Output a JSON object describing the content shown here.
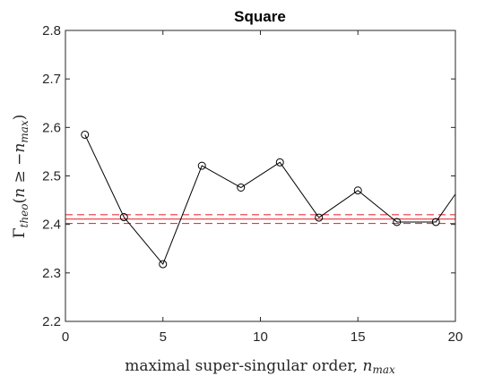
{
  "chart_data": {
    "type": "line",
    "title": "Square",
    "xlabel": "maximal super-singular order, n_max",
    "ylabel": "Γ_theo(n ≥ −n_max)",
    "xlim": [
      0,
      20
    ],
    "ylim": [
      2.2,
      2.8
    ],
    "xticks": [
      0,
      5,
      10,
      15,
      20
    ],
    "yticks": [
      2.2,
      2.3,
      2.4,
      2.5,
      2.6,
      2.7,
      2.8
    ],
    "xtick_labels": [
      "0",
      "5",
      "10",
      "15",
      "20"
    ],
    "ytick_labels": [
      "2.2",
      "2.3",
      "2.4",
      "2.5",
      "2.6",
      "2.7",
      "2.8"
    ],
    "series": [
      {
        "color": "#000000",
        "marker": "circle",
        "x": [
          1,
          3,
          5,
          7,
          9,
          11,
          13,
          15,
          17,
          19,
          21
        ],
        "y": [
          2.585,
          2.415,
          2.318,
          2.521,
          2.476,
          2.528,
          2.414,
          2.47,
          2.405,
          2.405,
          2.52
        ]
      }
    ],
    "reference_lines": [
      {
        "y": 2.411,
        "style": "solid",
        "color": "#e8333c"
      },
      {
        "y": 2.42,
        "style": "dashed",
        "color": "#e8333c"
      },
      {
        "y": 2.402,
        "style": "dashed",
        "color": "#e8333c"
      }
    ],
    "grid": false,
    "legend": "none"
  }
}
